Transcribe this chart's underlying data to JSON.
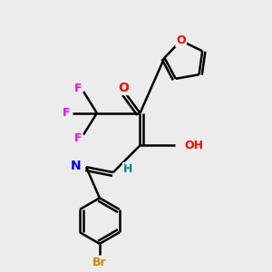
{
  "background_color": "#ececec",
  "bond_color": "#000000",
  "atom_colors": {
    "O": "#ff0000",
    "N": "#0000ff",
    "F": "#ff00ff",
    "Br": "#cc8800",
    "H": "#008888",
    "C": "#000000"
  }
}
